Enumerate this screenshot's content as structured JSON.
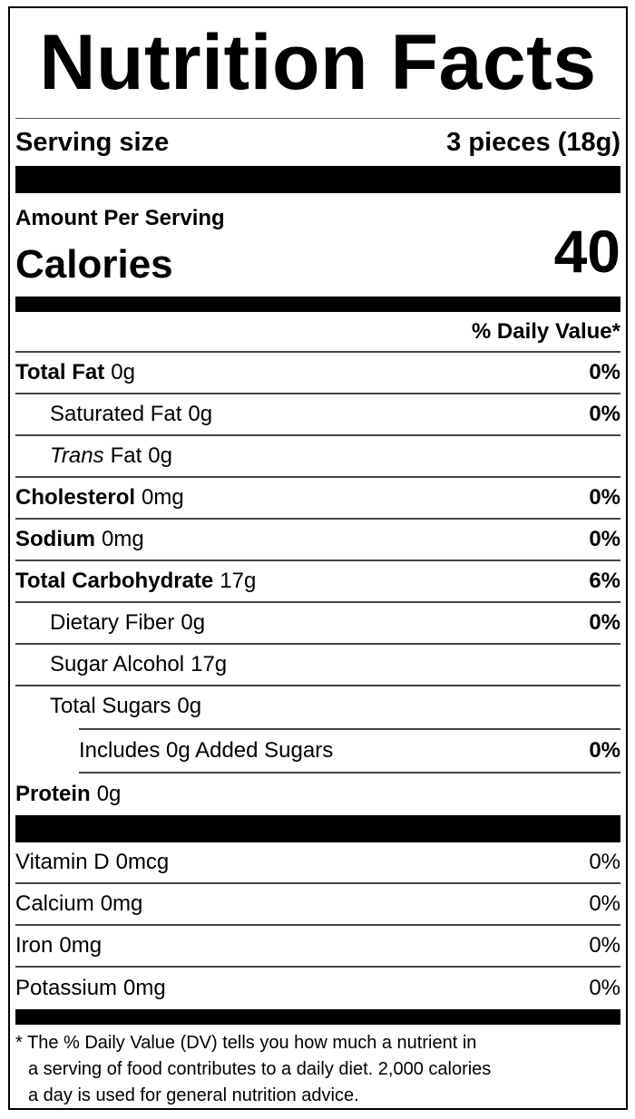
{
  "title": "Nutrition Facts",
  "serving": {
    "label": "Serving size",
    "value": "3 pieces (18g)"
  },
  "calories": {
    "heading": "Amount Per Serving",
    "label": "Calories",
    "value": "40"
  },
  "dv_heading": "% Daily Value*",
  "nutrients": [
    {
      "label": "Total Fat",
      "amount": "0g",
      "dv": "0%"
    },
    {
      "label": "Saturated Fat",
      "amount": "0g",
      "dv": "0%"
    },
    {
      "italic": "Trans",
      "label": "Fat",
      "amount": "0g"
    },
    {
      "label": "Cholesterol",
      "amount": "0mg",
      "dv": "0%"
    },
    {
      "label": "Sodium",
      "amount": "0mg",
      "dv": "0%"
    },
    {
      "label": "Total Carbohydrate",
      "amount": "17g",
      "dv": "6%"
    },
    {
      "label": "Dietary Fiber",
      "amount": "0g",
      "dv": "0%"
    },
    {
      "label": "Sugar Alcohol",
      "amount": "17g"
    },
    {
      "label": "Total Sugars",
      "amount": "0g"
    },
    {
      "label": "Includes 0g Added Sugars",
      "dv": "0%"
    },
    {
      "label": "Protein",
      "amount": "0g"
    }
  ],
  "vitamins": [
    {
      "label": "Vitamin D",
      "amount": "0mcg",
      "dv": "0%"
    },
    {
      "label": "Calcium",
      "amount": "0mg",
      "dv": "0%"
    },
    {
      "label": "Iron",
      "amount": "0mg",
      "dv": "0%"
    },
    {
      "label": "Potassium",
      "amount": "0mg",
      "dv": "0%"
    }
  ],
  "footnote": [
    "* The % Daily Value (DV) tells you how much a nutrient in",
    "a serving of food contributes to a daily diet. 2,000 calories",
    "a day is used for general nutrition advice."
  ]
}
